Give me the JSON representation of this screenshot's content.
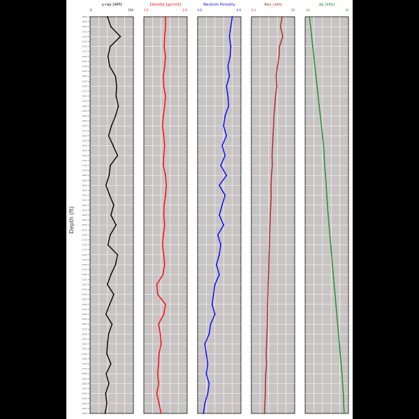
{
  "chart_data": {
    "type": "line",
    "y_axis_label": "Depth (ft)",
    "depth_range": [
      1000,
      3000
    ],
    "depth_tick_count": 80,
    "grid": true,
    "tracks": [
      {
        "name": "γ-ray [API]",
        "color": "#000000",
        "xlim": [
          0,
          150
        ],
        "tick_left": "0",
        "tick_right": "150",
        "depth": [
          1000,
          1050,
          1100,
          1150,
          1200,
          1250,
          1300,
          1350,
          1400,
          1450,
          1500,
          1550,
          1600,
          1650,
          1700,
          1750,
          1800,
          1850,
          1900,
          1950,
          2000,
          2050,
          2100,
          2150,
          2200,
          2250,
          2300,
          2350,
          2400,
          2450,
          2500,
          2550,
          2600,
          2650,
          2700,
          2750,
          2800,
          2850,
          2900,
          2950,
          3000
        ],
        "values": [
          60,
          72,
          105,
          70,
          62,
          68,
          88,
          92,
          90,
          98,
          88,
          74,
          64,
          80,
          95,
          70,
          66,
          55,
          68,
          82,
          72,
          90,
          70,
          62,
          95,
          88,
          72,
          60,
          82,
          68,
          55,
          76,
          64,
          60,
          58,
          72,
          56,
          65,
          54,
          58,
          52
        ]
      },
      {
        "name": "Density [g/cm3]",
        "color": "#ff0000",
        "xlim": [
          1.9,
          2.9
        ],
        "tick_left": "1.9",
        "tick_right": "2.9",
        "depth": [
          1000,
          1050,
          1100,
          1150,
          1200,
          1250,
          1300,
          1350,
          1400,
          1450,
          1500,
          1550,
          1600,
          1650,
          1700,
          1750,
          1800,
          1850,
          1900,
          1950,
          2000,
          2050,
          2100,
          2150,
          2200,
          2250,
          2300,
          2350,
          2400,
          2450,
          2500,
          2550,
          2600,
          2650,
          2700,
          2750,
          2800,
          2850,
          2900,
          2950,
          3000
        ],
        "values": [
          2.4,
          2.4,
          2.38,
          2.37,
          2.4,
          2.38,
          2.35,
          2.36,
          2.4,
          2.38,
          2.35,
          2.33,
          2.36,
          2.38,
          2.36,
          2.35,
          2.4,
          2.42,
          2.4,
          2.37,
          2.36,
          2.38,
          2.35,
          2.33,
          2.36,
          2.38,
          2.34,
          2.2,
          2.22,
          2.4,
          2.36,
          2.24,
          2.28,
          2.3,
          2.25,
          2.24,
          2.22,
          2.24,
          2.2,
          2.25,
          2.3
        ]
      },
      {
        "name": "Neutron Porosity",
        "color": "#0000ff",
        "xlim": [
          0.0,
          0.6
        ],
        "tick_left": "0.0",
        "tick_right": "0.6",
        "depth": [
          1000,
          1050,
          1100,
          1150,
          1200,
          1250,
          1300,
          1350,
          1400,
          1450,
          1500,
          1550,
          1600,
          1650,
          1700,
          1750,
          1800,
          1850,
          1900,
          1950,
          2000,
          2050,
          2100,
          2150,
          2200,
          2250,
          2300,
          2350,
          2400,
          2450,
          2500,
          2550,
          2600,
          2650,
          2700,
          2750,
          2800,
          2850,
          2900,
          2950,
          3000
        ],
        "values": [
          0.48,
          0.46,
          0.44,
          0.46,
          0.45,
          0.42,
          0.44,
          0.4,
          0.42,
          0.43,
          0.38,
          0.36,
          0.4,
          0.34,
          0.38,
          0.32,
          0.4,
          0.3,
          0.38,
          0.34,
          0.3,
          0.36,
          0.28,
          0.32,
          0.3,
          0.26,
          0.3,
          0.24,
          0.22,
          0.2,
          0.24,
          0.18,
          0.16,
          0.1,
          0.12,
          0.14,
          0.12,
          0.16,
          0.14,
          0.1,
          0.08
        ]
      },
      {
        "name": "Res_ratio",
        "color": "#b22222",
        "xlim": [
          0.1,
          10
        ],
        "tick_left": "0.1",
        "tick_right": "10",
        "log_scale": true,
        "depth": [
          1000,
          1050,
          1100,
          1150,
          1200,
          1250,
          1300,
          1350,
          1400,
          1450,
          1500,
          1550,
          1600,
          1650,
          1700,
          1750,
          1800,
          1850,
          1900,
          1950,
          2000,
          2050,
          2100,
          2150,
          2200,
          2250,
          2300,
          2350,
          2400,
          2450,
          2500,
          2550,
          2600,
          2650,
          2700,
          2750,
          2800,
          2850,
          2900,
          2950,
          3000
        ],
        "values": [
          2.6,
          2.2,
          2.8,
          2.0,
          1.9,
          1.6,
          1.4,
          1.5,
          1.3,
          1.2,
          1.1,
          1.05,
          1.0,
          0.95,
          0.9,
          0.92,
          0.85,
          0.8,
          0.82,
          0.78,
          0.75,
          0.72,
          0.7,
          0.68,
          0.66,
          0.64,
          0.62,
          0.6,
          0.58,
          0.56,
          0.55,
          0.54,
          0.52,
          0.5,
          0.48,
          0.5,
          0.46,
          0.45,
          0.44,
          0.42,
          0.4
        ]
      },
      {
        "name": "dp [kPa]",
        "color": "#228b22",
        "xlim": [
          -10,
          10
        ],
        "tick_left": "-10",
        "tick_right": "10",
        "depth": [
          1000,
          1050,
          1100,
          1150,
          1200,
          1250,
          1300,
          1350,
          1400,
          1450,
          1500,
          1550,
          1600,
          1650,
          1700,
          1750,
          1800,
          1850,
          1900,
          1950,
          2000,
          2050,
          2100,
          2150,
          2200,
          2250,
          2300,
          2350,
          2400,
          2450,
          2500,
          2550,
          2600,
          2650,
          2700,
          2750,
          2800,
          2850,
          2900,
          2950,
          3000
        ],
        "values": [
          -8,
          -7.5,
          -7,
          -6.5,
          -6,
          -5.5,
          -5,
          -4.5,
          -4,
          -3.5,
          -3,
          -2.5,
          -2,
          -1.5,
          -1.2,
          -1,
          -0.6,
          -0.3,
          0,
          0.3,
          0.6,
          1,
          1.4,
          1.8,
          2.2,
          2.6,
          3,
          3.4,
          3.8,
          4.2,
          4.6,
          5,
          5.4,
          5.8,
          6.2,
          6.6,
          7,
          7.3,
          7.6,
          7.8,
          8
        ]
      }
    ]
  }
}
